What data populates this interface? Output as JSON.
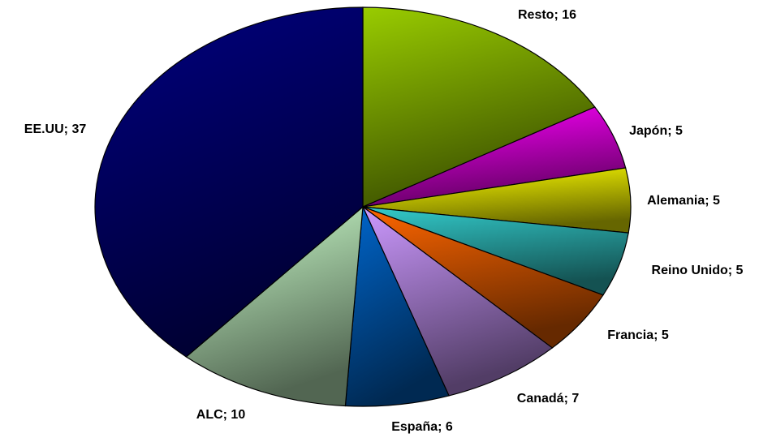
{
  "chart_data": {
    "type": "pie",
    "labels": [
      "Resto; 16",
      "Japón; 5",
      "Alemania; 5",
      "Reino Unido; 5",
      "Francia; 5",
      "Canadá; 7",
      "España; 6",
      "ALC; 10",
      "EE.UU; 37"
    ],
    "values": [
      16,
      5,
      5,
      5,
      5,
      7,
      6,
      10,
      37
    ],
    "colors": [
      "#99cc00",
      "#ff00ff",
      "#ffff00",
      "#33cccc",
      "#ff6600",
      "#cc99ff",
      "#0066cc",
      "#ccffcc",
      "#000080"
    ]
  }
}
